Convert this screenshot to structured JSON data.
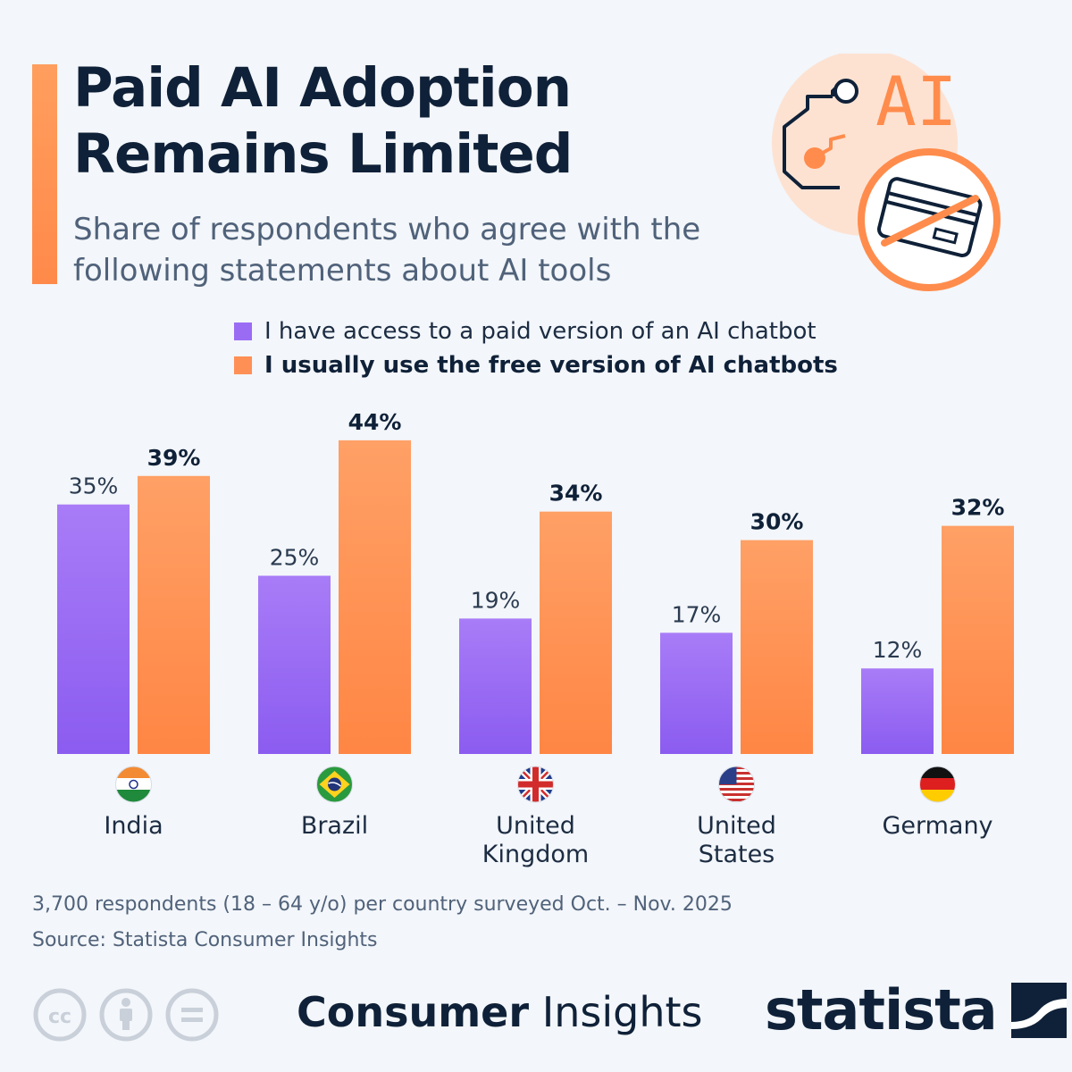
{
  "title": "Paid AI Adoption Remains Limited",
  "subtitle": "Share of respondents who agree with the following statements about AI tools",
  "colors": {
    "accent": "#ff8c4c",
    "paid_top": "#a87cf7",
    "paid_bottom": "#8b5cf0",
    "free_top": "#ffa066",
    "free_bottom": "#ff8644",
    "text_dark": "#0f2138",
    "text_muted": "#50627a"
  },
  "chart_data": {
    "type": "bar",
    "categories": [
      "India",
      "Brazil",
      "United Kingdom",
      "United States",
      "Germany"
    ],
    "category_lines": [
      [
        "India"
      ],
      [
        "Brazil"
      ],
      [
        "United",
        "Kingdom"
      ],
      [
        "United",
        "States"
      ],
      [
        "Germany"
      ]
    ],
    "flags": [
      "india-flag-icon",
      "brazil-flag-icon",
      "uk-flag-icon",
      "us-flag-icon",
      "germany-flag-icon"
    ],
    "series": [
      {
        "name": "I have access to a paid version of an AI chatbot",
        "values": [
          35,
          25,
          19,
          17,
          12
        ],
        "labels": [
          "35%",
          "25%",
          "19%",
          "17%",
          "12%"
        ]
      },
      {
        "name": "I usually use the free version of AI chatbots",
        "values": [
          39,
          44,
          34,
          30,
          32
        ],
        "labels": [
          "39%",
          "44%",
          "34%",
          "30%",
          "32%"
        ]
      }
    ],
    "unit": "%",
    "legend_position": "top",
    "grid": false
  },
  "hero": {
    "ai_text": "AI"
  },
  "footnotes": {
    "survey": "3,700 respondents (18 – 64 y/o) per country surveyed Oct. – Nov. 2025",
    "source": "Source: Statista Consumer Insights"
  },
  "footer": {
    "brand_bold": "Consumer",
    "brand_regular": "Insights",
    "statista": "statista",
    "license_icons": [
      "cc-icon",
      "attribution-icon",
      "no-derivatives-icon"
    ]
  }
}
